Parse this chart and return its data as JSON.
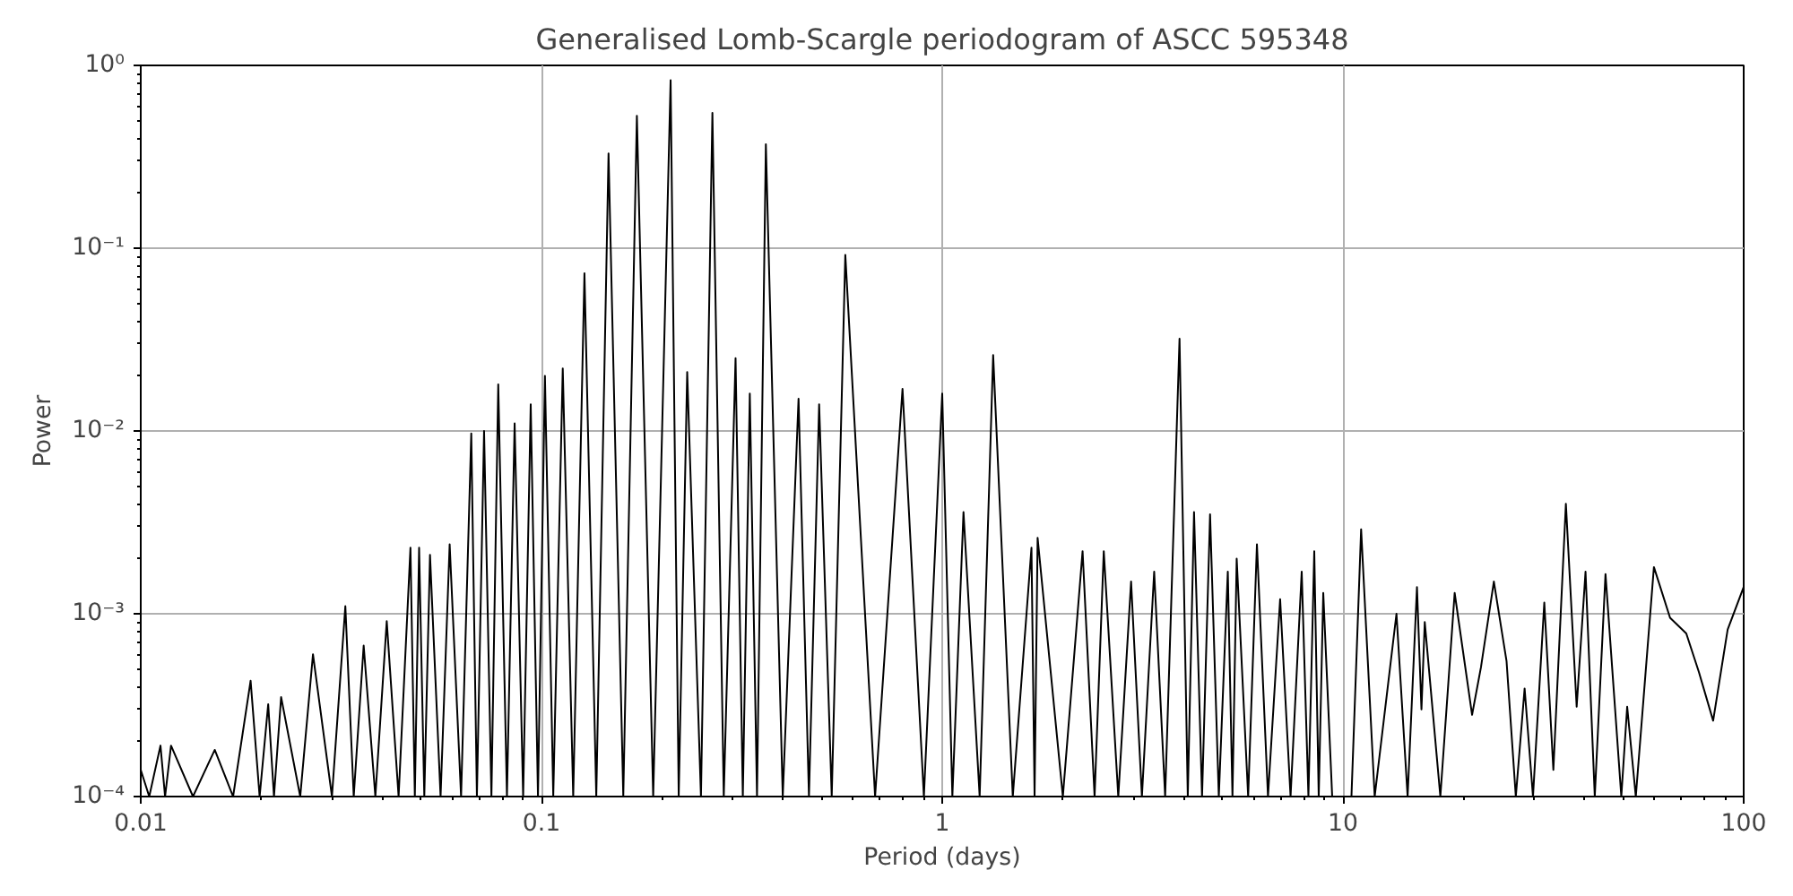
{
  "chart_data": {
    "type": "line",
    "title": "Generalised Lomb-Scargle periodogram of ASCC 595348",
    "xlabel": "Period (days)",
    "ylabel": "Power",
    "log": "xy",
    "grid": true,
    "marker": "none",
    "line_style": "solid",
    "xlim": [
      0.01,
      100
    ],
    "ylim": [
      0.0001,
      1
    ],
    "xticks": [
      0.01,
      0.1,
      1,
      10,
      100
    ],
    "yticks": [
      {
        "value": 0.0001,
        "label": "10⁻⁴"
      },
      {
        "value": 0.001,
        "label": "10⁻³"
      },
      {
        "value": 0.01,
        "label": "10⁻²"
      },
      {
        "value": 0.1,
        "label": "10⁻¹"
      },
      {
        "value": 1,
        "label": "10⁰"
      }
    ],
    "series": [
      {
        "color": "#000000",
        "x": [
          0.01,
          0.0105,
          0.0112,
          0.0115,
          0.0119,
          0.0135,
          0.0153,
          0.017,
          0.0188,
          0.0198,
          0.0208,
          0.0215,
          0.0224,
          0.025,
          0.0269,
          0.03,
          0.0324,
          0.034,
          0.036,
          0.0385,
          0.0411,
          0.044,
          0.0471,
          0.0483,
          0.0495,
          0.051,
          0.0527,
          0.056,
          0.059,
          0.063,
          0.0668,
          0.069,
          0.0719,
          0.075,
          0.078,
          0.082,
          0.0857,
          0.09,
          0.094,
          0.098,
          0.102,
          0.107,
          0.113,
          0.12,
          0.128,
          0.137,
          0.147,
          0.16,
          0.173,
          0.19,
          0.21,
          0.22,
          0.231,
          0.25,
          0.267,
          0.285,
          0.305,
          0.318,
          0.331,
          0.345,
          0.363,
          0.4,
          0.438,
          0.465,
          0.493,
          0.53,
          0.573,
          0.68,
          0.796,
          0.9,
          1.0,
          1.06,
          1.13,
          1.24,
          1.34,
          1.5,
          1.67,
          1.7,
          1.73,
          2.0,
          2.24,
          2.4,
          2.53,
          2.75,
          2.96,
          3.15,
          3.38,
          3.6,
          3.91,
          4.1,
          4.25,
          4.45,
          4.66,
          4.9,
          5.16,
          5.3,
          5.43,
          5.8,
          6.1,
          6.5,
          6.97,
          7.4,
          7.89,
          8.2,
          8.48,
          8.7,
          8.93,
          9.4,
          10.5,
          11.1,
          12.0,
          13.6,
          14.5,
          15.3,
          15.7,
          16.0,
          17.5,
          19.0,
          21,
          22.1,
          23.8,
          25.6,
          27,
          28.4,
          29.8,
          31.8,
          33.5,
          36,
          38.3,
          40.3,
          42.5,
          45.2,
          49.5,
          51.2,
          53.8,
          59.7,
          65.5,
          71.9,
          77.3,
          83.9,
          91.2,
          100
        ],
        "values": [
          0.00014,
          0.0001,
          0.00019,
          0.0001,
          0.00019,
          0.0001,
          0.00018,
          0.0001,
          0.00043,
          0.0001,
          0.00032,
          0.0001,
          0.00035,
          0.0001,
          0.0006,
          0.0001,
          0.0011,
          0.0001,
          0.00067,
          0.0001,
          0.00091,
          0.0001,
          0.0023,
          0.0001,
          0.0023,
          0.0001,
          0.0021,
          0.0001,
          0.0024,
          0.0001,
          0.0097,
          0.0001,
          0.01,
          0.0001,
          0.018,
          0.0001,
          0.011,
          0.0001,
          0.014,
          0.0001,
          0.02,
          0.0001,
          0.022,
          0.0001,
          0.073,
          0.0001,
          0.33,
          0.0001,
          0.53,
          0.0001,
          0.83,
          0.0001,
          0.021,
          0.0001,
          0.55,
          0.0001,
          0.025,
          0.0001,
          0.016,
          0.0001,
          0.37,
          0.0001,
          0.015,
          0.0001,
          0.014,
          0.0001,
          0.092,
          0.0001,
          0.017,
          0.0001,
          0.016,
          0.0001,
          0.0036,
          0.0001,
          0.026,
          0.0001,
          0.0023,
          0.0001,
          0.0026,
          0.0001,
          0.0022,
          0.0001,
          0.0022,
          0.0001,
          0.0015,
          0.0001,
          0.0017,
          0.0001,
          0.032,
          0.0001,
          0.0036,
          0.0001,
          0.0035,
          0.0001,
          0.0017,
          0.0001,
          0.002,
          0.0001,
          0.0024,
          0.0001,
          0.0012,
          0.0001,
          0.0017,
          0.0001,
          0.0022,
          0.0001,
          0.0013,
          0.0001,
          0.0001,
          0.0029,
          0.0001,
          0.001,
          0.0001,
          0.0014,
          0.0003,
          0.0009,
          0.0001,
          0.0013,
          0.00028,
          0.00051,
          0.0015,
          0.00055,
          0.0001,
          0.00039,
          0.0001,
          0.00115,
          0.00014,
          0.004,
          0.00031,
          0.0017,
          0.0001,
          0.00165,
          0.0001,
          0.00031,
          0.0001,
          0.0018,
          0.00095,
          0.00078,
          0.00048,
          0.00026,
          0.00082,
          0.0014
        ]
      }
    ]
  }
}
